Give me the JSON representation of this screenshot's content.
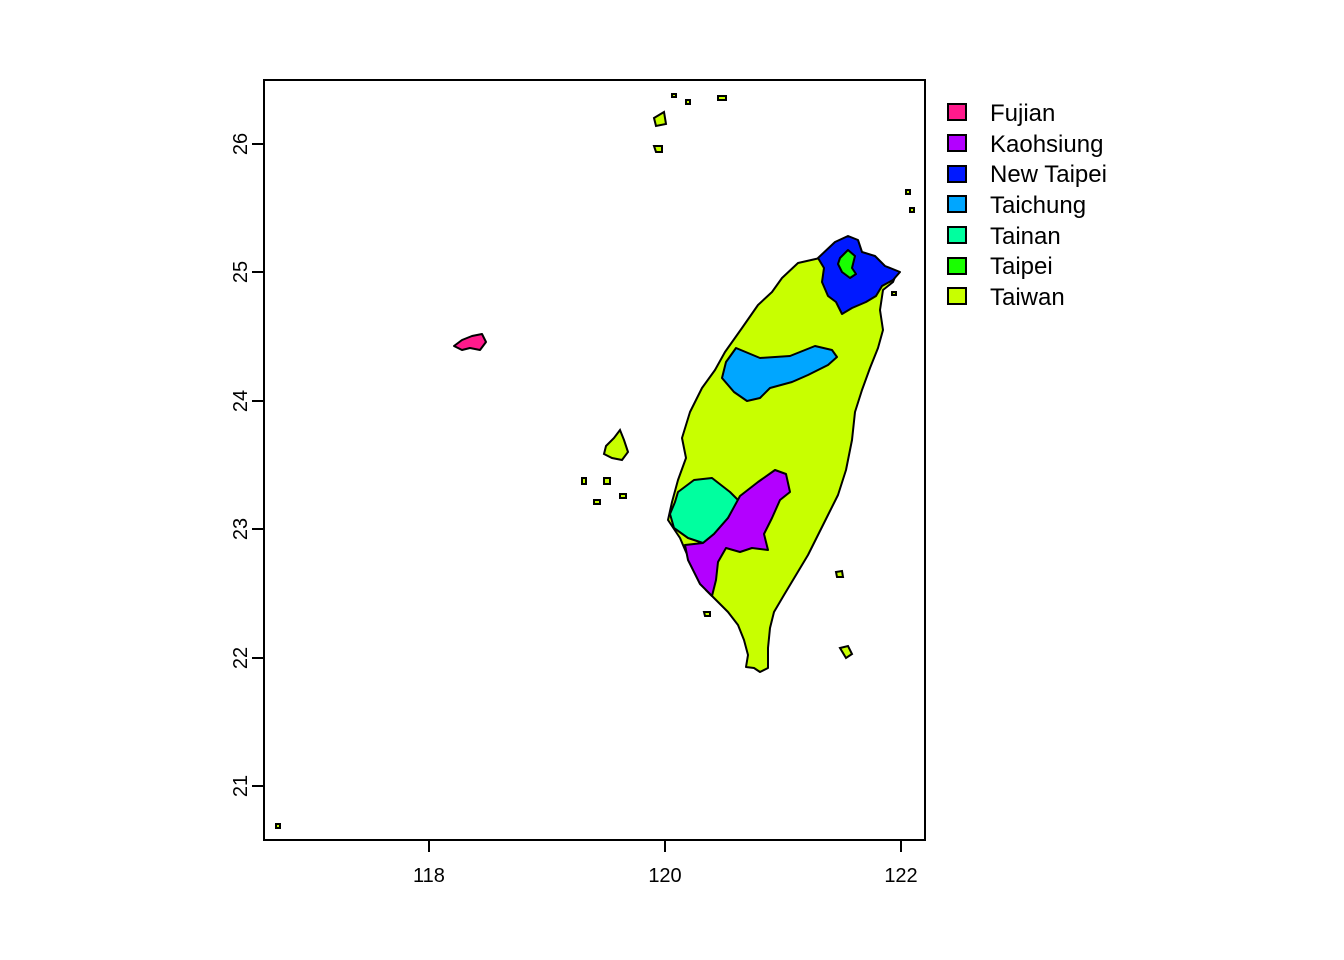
{
  "map": {
    "type": "choropleth",
    "lon_range": [
      116.65,
      122.2
    ],
    "lat_range": [
      20.6,
      26.5
    ],
    "x_ticks": [
      "118",
      "120",
      "122"
    ],
    "y_ticks": [
      "21",
      "22",
      "23",
      "24",
      "25",
      "26"
    ],
    "legend_position": "top-right, outside plot"
  },
  "legend": [
    {
      "label": "Fujian",
      "color": "#ff1a8c"
    },
    {
      "label": "Kaohsiung",
      "color": "#b300ff"
    },
    {
      "label": "New Taipei",
      "color": "#0019ff"
    },
    {
      "label": "Taichung",
      "color": "#00a6ff"
    },
    {
      "label": "Tainan",
      "color": "#00ff9f"
    },
    {
      "label": "Taipei",
      "color": "#19ff00"
    },
    {
      "label": "Taiwan",
      "color": "#c8ff00"
    }
  ]
}
